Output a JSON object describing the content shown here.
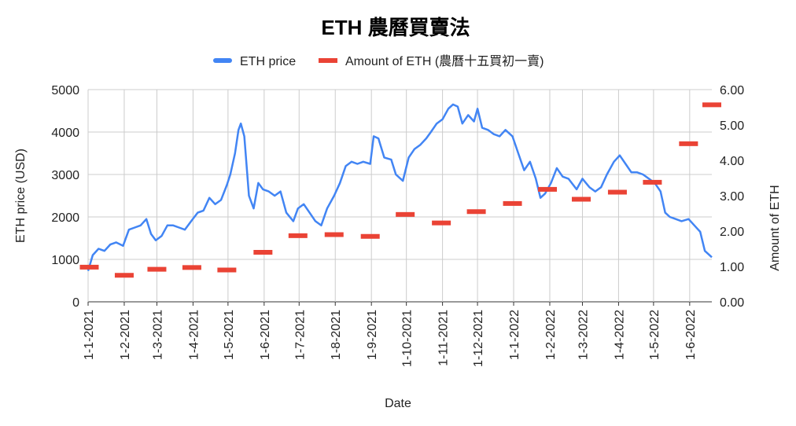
{
  "chart_data": {
    "type": "line",
    "title": "ETH 農曆買賣法",
    "xlabel": "Date",
    "ylabel_left": "ETH price (USD)",
    "ylabel_right": "Amount of ETH",
    "ylim_left": [
      0,
      5000
    ],
    "ylim_right": [
      0,
      6
    ],
    "yticks_left": [
      "0",
      "1000",
      "2000",
      "3000",
      "4000",
      "5000"
    ],
    "yticks_right": [
      "0.00",
      "1.00",
      "2.00",
      "3.00",
      "4.00",
      "5.00",
      "6.00"
    ],
    "x_range": [
      "2021-01-01",
      "2022-06-20"
    ],
    "xticks": [
      "1-1-2021",
      "1-2-2021",
      "1-3-2021",
      "1-4-2021",
      "1-5-2021",
      "1-6-2021",
      "1-7-2021",
      "1-8-2021",
      "1-9-2021",
      "1-10-2021",
      "1-11-2021",
      "1-12-2021",
      "1-1-2022",
      "1-2-2022",
      "1-3-2022",
      "1-4-2022",
      "1-5-2022",
      "1-6-2022"
    ],
    "grid": true,
    "legend_position": "top",
    "series": [
      {
        "name": "ETH price",
        "axis": "left",
        "style": "line",
        "color": "#4285F4",
        "x": [
          "2021-01-01",
          "2021-01-05",
          "2021-01-10",
          "2021-01-15",
          "2021-01-20",
          "2021-01-25",
          "2021-01-31",
          "2021-02-05",
          "2021-02-10",
          "2021-02-15",
          "2021-02-20",
          "2021-02-24",
          "2021-02-28",
          "2021-03-05",
          "2021-03-10",
          "2021-03-15",
          "2021-03-20",
          "2021-03-25",
          "2021-03-31",
          "2021-04-05",
          "2021-04-10",
          "2021-04-15",
          "2021-04-20",
          "2021-04-25",
          "2021-04-30",
          "2021-05-03",
          "2021-05-07",
          "2021-05-10",
          "2021-05-12",
          "2021-05-15",
          "2021-05-19",
          "2021-05-23",
          "2021-05-27",
          "2021-05-31",
          "2021-06-05",
          "2021-06-10",
          "2021-06-15",
          "2021-06-20",
          "2021-06-26",
          "2021-06-30",
          "2021-07-05",
          "2021-07-10",
          "2021-07-15",
          "2021-07-20",
          "2021-07-25",
          "2021-07-31",
          "2021-08-05",
          "2021-08-10",
          "2021-08-15",
          "2021-08-20",
          "2021-08-25",
          "2021-08-31",
          "2021-09-03",
          "2021-09-07",
          "2021-09-12",
          "2021-09-18",
          "2021-09-22",
          "2021-09-28",
          "2021-10-03",
          "2021-10-08",
          "2021-10-13",
          "2021-10-18",
          "2021-10-22",
          "2021-10-27",
          "2021-11-01",
          "2021-11-06",
          "2021-11-10",
          "2021-11-14",
          "2021-11-18",
          "2021-11-23",
          "2021-11-28",
          "2021-12-01",
          "2021-12-05",
          "2021-12-10",
          "2021-12-15",
          "2021-12-20",
          "2021-12-25",
          "2021-12-31",
          "2022-01-05",
          "2022-01-10",
          "2022-01-15",
          "2022-01-20",
          "2022-01-24",
          "2022-01-28",
          "2022-02-02",
          "2022-02-07",
          "2022-02-12",
          "2022-02-17",
          "2022-02-24",
          "2022-03-01",
          "2022-03-07",
          "2022-03-12",
          "2022-03-17",
          "2022-03-22",
          "2022-03-28",
          "2022-04-02",
          "2022-04-07",
          "2022-04-12",
          "2022-04-17",
          "2022-04-22",
          "2022-04-27",
          "2022-05-02",
          "2022-05-07",
          "2022-05-11",
          "2022-05-15",
          "2022-05-20",
          "2022-05-25",
          "2022-05-31",
          "2022-06-05",
          "2022-06-10",
          "2022-06-14",
          "2022-06-18",
          "2022-06-20"
        ],
        "values": [
          730,
          1100,
          1250,
          1200,
          1350,
          1400,
          1320,
          1700,
          1750,
          1800,
          1950,
          1600,
          1450,
          1550,
          1800,
          1800,
          1750,
          1700,
          1920,
          2100,
          2150,
          2450,
          2300,
          2400,
          2750,
          3000,
          3500,
          4050,
          4200,
          3900,
          2500,
          2200,
          2800,
          2650,
          2600,
          2500,
          2600,
          2100,
          1900,
          2200,
          2300,
          2100,
          1900,
          1800,
          2200,
          2500,
          2800,
          3200,
          3300,
          3250,
          3300,
          3250,
          3900,
          3850,
          3400,
          3350,
          3000,
          2850,
          3400,
          3600,
          3700,
          3850,
          4000,
          4200,
          4300,
          4550,
          4650,
          4600,
          4200,
          4400,
          4250,
          4550,
          4100,
          4050,
          3950,
          3900,
          4050,
          3900,
          3500,
          3100,
          3300,
          2900,
          2450,
          2550,
          2800,
          3150,
          2950,
          2900,
          2650,
          2900,
          2700,
          2600,
          2700,
          3000,
          3300,
          3450,
          3250,
          3050,
          3050,
          3000,
          2900,
          2800,
          2600,
          2100,
          2000,
          1950,
          1900,
          1950,
          1800,
          1650,
          1200,
          1100,
          1050
        ]
      },
      {
        "name": "Amount of ETH (農曆十五買初一賣)",
        "axis": "right",
        "style": "dash",
        "color": "#EA4335",
        "x": [
          "2021-01-02",
          "2021-02-01",
          "2021-03-01",
          "2021-03-31",
          "2021-04-30",
          "2021-05-31",
          "2021-06-30",
          "2021-07-31",
          "2021-08-31",
          "2021-09-30",
          "2021-10-31",
          "2021-11-30",
          "2021-12-31",
          "2022-01-30",
          "2022-02-28",
          "2022-03-31",
          "2022-04-30",
          "2022-05-31",
          "2022-06-20"
        ],
        "values": [
          0.98,
          0.75,
          0.92,
          0.97,
          0.9,
          1.4,
          1.87,
          1.9,
          1.85,
          2.47,
          2.23,
          2.55,
          2.78,
          3.18,
          2.9,
          3.1,
          3.38,
          4.47,
          5.57
        ]
      }
    ]
  }
}
